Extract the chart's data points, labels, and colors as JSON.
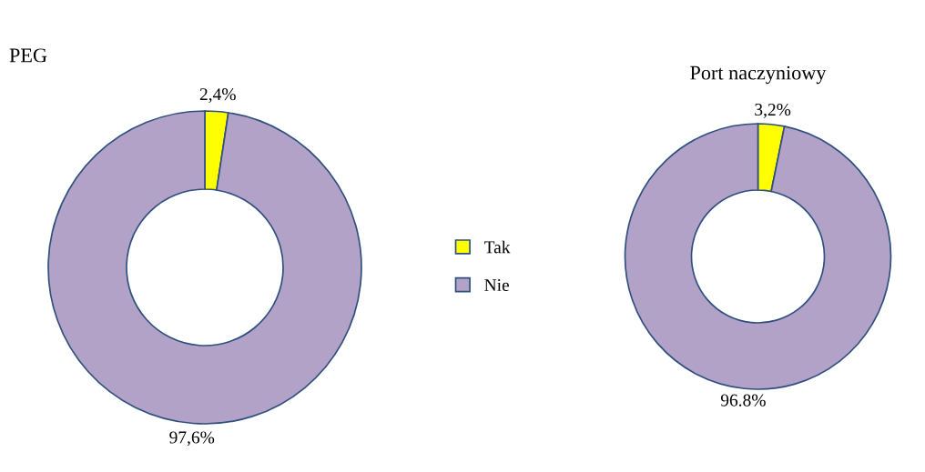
{
  "chart_data": [
    {
      "type": "donut",
      "title": "PEG",
      "categories": [
        "Tak",
        "Nie"
      ],
      "values": [
        2.4,
        97.6
      ],
      "colors": [
        "#ffff00",
        "#b3a2c7"
      ],
      "value_labels": [
        "2,4%",
        "97,6%"
      ],
      "legend": "right"
    },
    {
      "type": "donut",
      "title": "Port naczyniowy",
      "categories": [
        null,
        null
      ],
      "values": [
        3.2,
        96.8
      ],
      "colors": [
        "#ffff00",
        "#b3a2c7"
      ],
      "value_labels": [
        "3,2%",
        "96.8%"
      ]
    }
  ]
}
